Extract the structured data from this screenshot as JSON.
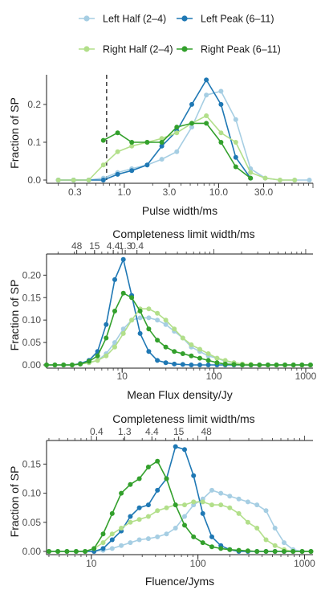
{
  "legend": {
    "position": "top",
    "items": [
      {
        "label": "Left Half (2–4)",
        "color": "#a6cee3",
        "series": 0
      },
      {
        "label": "Left Peak (6–11)",
        "color": "#1f78b4",
        "series": 1
      },
      {
        "label": "Right Half (2–4)",
        "color": "#b2df8a",
        "series": 2
      },
      {
        "label": "Right Peak (6–11)",
        "color": "#33a02c",
        "series": 3
      }
    ]
  },
  "chart_data": [
    {
      "type": "line",
      "xscale": "log",
      "xlabel": "Pulse width/ms",
      "ylabel": "Fraction of SP",
      "xlim": [
        0.15,
        100
      ],
      "ylim": [
        0,
        0.27
      ],
      "xticks": [
        {
          "v": 0.3,
          "label": "0.3"
        },
        {
          "v": 1.0,
          "label": "1.0"
        },
        {
          "v": 3.0,
          "label": "3.0"
        },
        {
          "v": 10.0,
          "label": "10.0"
        },
        {
          "v": 30.0,
          "label": "30.0"
        }
      ],
      "yticks": [
        {
          "v": 0.0,
          "label": "0.0"
        },
        {
          "v": 0.1,
          "label": "0.1"
        },
        {
          "v": 0.2,
          "label": "0.2"
        }
      ],
      "vline": 0.65,
      "grid": false,
      "series": [
        {
          "name": "Left Half (2–4)",
          "color": "#a6cee3",
          "x": [
            0.2,
            0.29,
            0.42,
            0.6,
            0.85,
            1.2,
            1.75,
            2.5,
            3.6,
            5.2,
            7.4,
            10.6,
            15.2,
            21.8,
            31.2,
            44.7,
            64,
            91.6
          ],
          "y": [
            0,
            0,
            0,
            0.005,
            0.02,
            0.03,
            0.04,
            0.055,
            0.075,
            0.14,
            0.225,
            0.235,
            0.16,
            0.03,
            0.005,
            0,
            0,
            0
          ]
        },
        {
          "name": "Left Peak (6–11)",
          "color": "#1f78b4",
          "x": [
            0.2,
            0.29,
            0.42,
            0.6,
            0.85,
            1.2,
            1.75,
            2.5,
            3.6,
            5.2,
            7.4,
            10.6,
            15.2,
            21.8
          ],
          "y": [
            0,
            0,
            0,
            0,
            0.015,
            0.025,
            0.04,
            0.09,
            0.13,
            0.2,
            0.265,
            0.2,
            0.06,
            0.005
          ]
        },
        {
          "name": "Right Half (2–4)",
          "color": "#b2df8a",
          "x": [
            0.2,
            0.29,
            0.42,
            0.6,
            0.85,
            1.2,
            1.75,
            2.5,
            3.6,
            5.2,
            7.4,
            10.6,
            15.2,
            21.8,
            31.2,
            44.7,
            64
          ],
          "y": [
            0,
            0,
            0,
            0.04,
            0.075,
            0.09,
            0.1,
            0.11,
            0.125,
            0.15,
            0.17,
            0.125,
            0.1,
            0.02,
            0.005,
            0,
            0
          ]
        },
        {
          "name": "Right Peak (6–11)",
          "color": "#33a02c",
          "x": [
            0.6,
            0.85,
            1.2,
            1.75,
            2.5,
            3.6,
            5.2,
            7.4,
            10.6,
            15.2,
            21.8
          ],
          "y": [
            0.105,
            0.125,
            0.1,
            0.1,
            0.1,
            0.14,
            0.15,
            0.15,
            0.1,
            0.035,
            0.005
          ]
        }
      ]
    },
    {
      "type": "line",
      "xscale": "log",
      "title": "Completeness limit width/ms",
      "xlabel": "Mean Flux density/Jy",
      "ylabel": "Fraction of SP",
      "xlim": [
        1.5,
        1200
      ],
      "ylim": [
        0,
        0.24
      ],
      "xticks": [
        {
          "v": 10,
          "label": "10"
        },
        {
          "v": 100,
          "label": "100"
        },
        {
          "v": 1000,
          "label": "1000"
        }
      ],
      "top_ticks": [
        {
          "v": 3.2,
          "label": "48"
        },
        {
          "v": 5.0,
          "label": "15"
        },
        {
          "v": 8.0,
          "label": "4.4"
        },
        {
          "v": 10.8,
          "label": "1.3"
        },
        {
          "v": 14.5,
          "label": "0.4"
        }
      ],
      "yticks": [
        {
          "v": 0.0,
          "label": "0.00"
        },
        {
          "v": 0.05,
          "label": "0.05"
        },
        {
          "v": 0.1,
          "label": "0.10"
        },
        {
          "v": 0.15,
          "label": "0.15"
        },
        {
          "v": 0.2,
          "label": "0.20"
        }
      ],
      "grid": false,
      "series": [
        {
          "name": "Left Half (2–4)",
          "color": "#a6cee3",
          "x": [
            1.5,
            1.85,
            2.3,
            2.85,
            3.5,
            4.35,
            5.4,
            6.7,
            8.3,
            10.3,
            12.7,
            15.7,
            19.5,
            24.2,
            29.9,
            37,
            45.8,
            56.7,
            70.2,
            86.9,
            108,
            133,
            165,
            204,
            253,
            313,
            388,
            480,
            594,
            736,
            911,
            1128
          ],
          "y": [
            0,
            0,
            0,
            0,
            0.002,
            0.005,
            0.01,
            0.025,
            0.05,
            0.08,
            0.1,
            0.105,
            0.105,
            0.1,
            0.09,
            0.075,
            0.06,
            0.04,
            0.03,
            0.02,
            0.015,
            0.008,
            0.005,
            0.002,
            0,
            0,
            0,
            0,
            0,
            0,
            0,
            0
          ]
        },
        {
          "name": "Left Peak (6–11)",
          "color": "#1f78b4",
          "x": [
            1.5,
            1.85,
            2.3,
            2.85,
            3.5,
            4.35,
            5.4,
            6.7,
            8.3,
            10.3,
            12.7,
            15.7,
            19.5,
            24.2,
            29.9,
            37,
            45.8,
            56.7,
            70.2,
            86.9,
            108,
            133,
            165,
            204,
            253,
            313,
            388,
            480,
            594,
            736,
            911,
            1128
          ],
          "y": [
            0,
            0,
            0,
            0,
            0.003,
            0.01,
            0.03,
            0.09,
            0.19,
            0.235,
            0.155,
            0.07,
            0.03,
            0.01,
            0.005,
            0.002,
            0.001,
            0,
            0,
            0,
            0,
            0,
            0,
            0,
            0,
            0,
            0,
            0,
            0,
            0,
            0,
            0
          ]
        },
        {
          "name": "Right Half (2–4)",
          "color": "#b2df8a",
          "x": [
            1.5,
            1.85,
            2.3,
            2.85,
            3.5,
            4.35,
            5.4,
            6.7,
            8.3,
            10.3,
            12.7,
            15.7,
            19.5,
            24.2,
            29.9,
            37,
            45.8,
            56.7,
            70.2,
            86.9,
            108,
            133,
            165,
            204,
            253,
            313,
            388,
            480,
            594,
            736,
            911,
            1128
          ],
          "y": [
            0,
            0,
            0,
            0,
            0.002,
            0.005,
            0.01,
            0.02,
            0.04,
            0.07,
            0.1,
            0.125,
            0.125,
            0.115,
            0.1,
            0.08,
            0.06,
            0.045,
            0.035,
            0.025,
            0.015,
            0.01,
            0.005,
            0.002,
            0.001,
            0,
            0,
            0,
            0,
            0,
            0,
            0
          ]
        },
        {
          "name": "Right Peak (6–11)",
          "color": "#33a02c",
          "x": [
            1.5,
            1.85,
            2.3,
            2.85,
            3.5,
            4.35,
            5.4,
            6.7,
            8.3,
            10.3,
            12.7,
            15.7,
            19.5,
            24.2,
            29.9,
            37,
            45.8,
            56.7,
            70.2,
            86.9,
            108,
            133,
            165,
            204,
            253,
            313,
            388,
            480,
            594,
            736,
            911,
            1128
          ],
          "y": [
            0,
            0,
            0,
            0,
            0.002,
            0.008,
            0.02,
            0.06,
            0.12,
            0.16,
            0.15,
            0.12,
            0.08,
            0.055,
            0.04,
            0.03,
            0.025,
            0.02,
            0.015,
            0.01,
            0.005,
            0.002,
            0.001,
            0,
            0,
            0,
            0,
            0,
            0,
            0,
            0,
            0
          ]
        }
      ]
    },
    {
      "type": "line",
      "xscale": "log",
      "title": "Completeness limit width/ms",
      "xlabel": "Fluence/Jyms",
      "ylabel": "Fraction of SP",
      "xlim": [
        3.8,
        1200
      ],
      "ylim": [
        0,
        0.185
      ],
      "xticks": [
        {
          "v": 10,
          "label": "10"
        },
        {
          "v": 100,
          "label": "100"
        },
        {
          "v": 1000,
          "label": "1000"
        }
      ],
      "top_ticks": [
        {
          "v": 11.2,
          "label": "0.4"
        },
        {
          "v": 20.5,
          "label": "1.3"
        },
        {
          "v": 37,
          "label": "4.4"
        },
        {
          "v": 66,
          "label": "15"
        },
        {
          "v": 120,
          "label": "48"
        }
      ],
      "yticks": [
        {
          "v": 0.0,
          "label": "0.00"
        },
        {
          "v": 0.05,
          "label": "0.05"
        },
        {
          "v": 0.1,
          "label": "0.10"
        },
        {
          "v": 0.15,
          "label": "0.15"
        }
      ],
      "grid": false,
      "series": [
        {
          "name": "Left Half (2–4)",
          "color": "#a6cee3",
          "x": [
            4,
            4.85,
            5.9,
            7.2,
            8.75,
            10.6,
            12.9,
            15.7,
            19.1,
            23.2,
            28.2,
            34.3,
            41.7,
            50.7,
            61.6,
            74.9,
            91,
            111,
            135,
            164,
            199,
            242,
            294,
            358,
            435,
            529,
            643,
            781,
            949,
            1150
          ],
          "y": [
            0,
            0,
            0,
            0,
            0,
            0,
            0.002,
            0.005,
            0.01,
            0.015,
            0.02,
            0.022,
            0.025,
            0.03,
            0.04,
            0.06,
            0.08,
            0.09,
            0.105,
            0.1,
            0.095,
            0.09,
            0.085,
            0.08,
            0.07,
            0.04,
            0.015,
            0.003,
            0,
            0
          ]
        },
        {
          "name": "Left Peak (6–11)",
          "color": "#1f78b4",
          "x": [
            4,
            4.85,
            5.9,
            7.2,
            8.75,
            10.6,
            12.9,
            15.7,
            19.1,
            23.2,
            28.2,
            34.3,
            41.7,
            50.7,
            61.6,
            74.9,
            91,
            111,
            135,
            164,
            199,
            242,
            294,
            358,
            435,
            529,
            643,
            781,
            949,
            1150
          ],
          "y": [
            0,
            0,
            0,
            0,
            0,
            0,
            0.005,
            0.02,
            0.035,
            0.06,
            0.075,
            0.08,
            0.105,
            0.125,
            0.18,
            0.175,
            0.13,
            0.065,
            0.025,
            0.01,
            0.003,
            0,
            0,
            0,
            0,
            0,
            0,
            0,
            0,
            0
          ]
        },
        {
          "name": "Right Half (2–4)",
          "color": "#b2df8a",
          "x": [
            4,
            4.85,
            5.9,
            7.2,
            8.75,
            10.6,
            12.9,
            15.7,
            19.1,
            23.2,
            28.2,
            34.3,
            41.7,
            50.7,
            61.6,
            74.9,
            91,
            111,
            135,
            164,
            199,
            242,
            294,
            358,
            435,
            529,
            643,
            781,
            949,
            1150
          ],
          "y": [
            0,
            0,
            0,
            0,
            0,
            0.005,
            0.015,
            0.03,
            0.04,
            0.05,
            0.055,
            0.06,
            0.07,
            0.075,
            0.08,
            0.08,
            0.085,
            0.085,
            0.08,
            0.08,
            0.075,
            0.065,
            0.05,
            0.04,
            0.02,
            0.01,
            0.003,
            0,
            0,
            0
          ]
        },
        {
          "name": "Right Peak (6–11)",
          "color": "#33a02c",
          "x": [
            4,
            4.85,
            5.9,
            7.2,
            8.75,
            10.6,
            12.9,
            15.7,
            19.1,
            23.2,
            28.2,
            34.3,
            41.7,
            50.7,
            61.6,
            74.9,
            91,
            111,
            135,
            164,
            199,
            242,
            294,
            358,
            435,
            529,
            643,
            781,
            949,
            1150
          ],
          "y": [
            0,
            0,
            0,
            0,
            0,
            0.005,
            0.03,
            0.065,
            0.1,
            0.115,
            0.125,
            0.145,
            0.155,
            0.125,
            0.08,
            0.045,
            0.025,
            0.015,
            0.008,
            0.005,
            0.003,
            0.002,
            0.001,
            0,
            0,
            0,
            0,
            0,
            0,
            0
          ]
        }
      ]
    }
  ]
}
